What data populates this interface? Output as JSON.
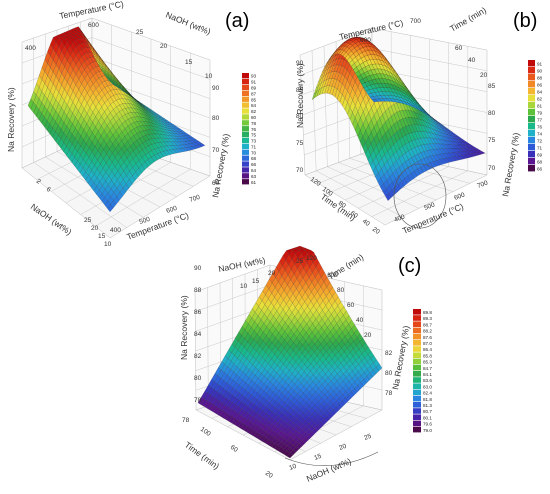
{
  "chart_data": [
    {
      "panel_label": "(a)",
      "type": "surface3d",
      "x_axis": {
        "label": "Temperature (°C)",
        "ticks": [
          "400",
          "500",
          "600",
          "700"
        ]
      },
      "y_axis": {
        "label": "NaOH (wt%)",
        "ticks": [
          "10",
          "15",
          "20",
          "25"
        ]
      },
      "z_axis": {
        "label": "Na Recovery (%)",
        "ticks": [
          "60",
          "70",
          "80",
          "90"
        ]
      },
      "top_tick_labels": {
        "temperature": [
          "600",
          "400"
        ],
        "naoh": [
          "25",
          "20",
          "15",
          "10"
        ]
      },
      "legend_values": [
        "93",
        "91",
        "89",
        "87",
        "85",
        "84",
        "82",
        "80",
        "78",
        "76",
        "75",
        "73",
        "71",
        "70",
        "68",
        "66",
        "64",
        "63",
        "61"
      ],
      "peak": {
        "temperature": 600,
        "naoh": 10,
        "recovery": 93
      },
      "low": {
        "temperature": 400,
        "naoh": 25,
        "recovery": 61
      }
    },
    {
      "panel_label": "(b)",
      "type": "surface3d",
      "x_axis": {
        "label": "Temperature (°C)",
        "ticks": [
          "400",
          "500",
          "600",
          "700"
        ]
      },
      "y_axis": {
        "label": "Time (min)",
        "ticks": [
          "20",
          "40",
          "60",
          "80",
          "100",
          "120"
        ]
      },
      "z_axis": {
        "label": "Na Recovery (%)",
        "ticks": [
          "70",
          "75",
          "80",
          "85",
          "90"
        ]
      },
      "top_tick_labels": {
        "temperature": [
          "600",
          "700"
        ],
        "time": [
          "60",
          "40",
          "20"
        ]
      },
      "legend_values": [
        "91",
        "90",
        "88",
        "86",
        "84",
        "82",
        "81",
        "79",
        "77",
        "76",
        "74",
        "72",
        "71",
        "69",
        "68",
        "66"
      ],
      "peak": {
        "temperature": 600,
        "time": 60,
        "recovery": 91
      },
      "low": {
        "temperature": 400,
        "time": 20,
        "recovery": 66
      }
    },
    {
      "panel_label": "(c)",
      "type": "surface3d",
      "x_axis": {
        "label": "NaOH (wt%)",
        "ticks": [
          "10",
          "15",
          "20",
          "25"
        ]
      },
      "y_axis": {
        "label": "Time (min)",
        "ticks": [
          "20",
          "60",
          "100"
        ]
      },
      "z_axis": {
        "label": "Na Recovery (%)",
        "ticks": [
          "78",
          "80",
          "82",
          "84",
          "86",
          "88",
          "90"
        ]
      },
      "top_tick_labels": {
        "naoh": [
          "25",
          "20",
          "15",
          "10"
        ],
        "time": [
          "120",
          "100",
          "80",
          "60",
          "40",
          "20"
        ],
        "right_z": [
          "82",
          "80",
          "78"
        ]
      },
      "legend_values": [
        "89.8",
        "89.3",
        "88.7",
        "88.2",
        "87.6",
        "87.0",
        "86.4",
        "85.8",
        "85.3",
        "84.7",
        "84.1",
        "83.6",
        "83.0",
        "82.4",
        "81.8",
        "81.3",
        "80.7",
        "80.1",
        "79.6",
        "79.0"
      ],
      "peak": {
        "naoh": 25,
        "time": 120,
        "recovery": 89.8
      },
      "low": {
        "naoh": 10,
        "time": 20,
        "recovery": 79.0
      }
    }
  ],
  "colors": {
    "colormap": [
      "#4a0a4a",
      "#5a1690",
      "#3a2fb8",
      "#2e5ad8",
      "#2a86e0",
      "#1fb1c7",
      "#19b98a",
      "#2ca84e",
      "#5cc23a",
      "#a8d63a",
      "#e7e03a",
      "#f4b830",
      "#f18a26",
      "#ea5a1e",
      "#dc2a14",
      "#c00a0a"
    ],
    "grid_line": "#bdbdbd",
    "mesh_line": "#1a1a1a"
  }
}
